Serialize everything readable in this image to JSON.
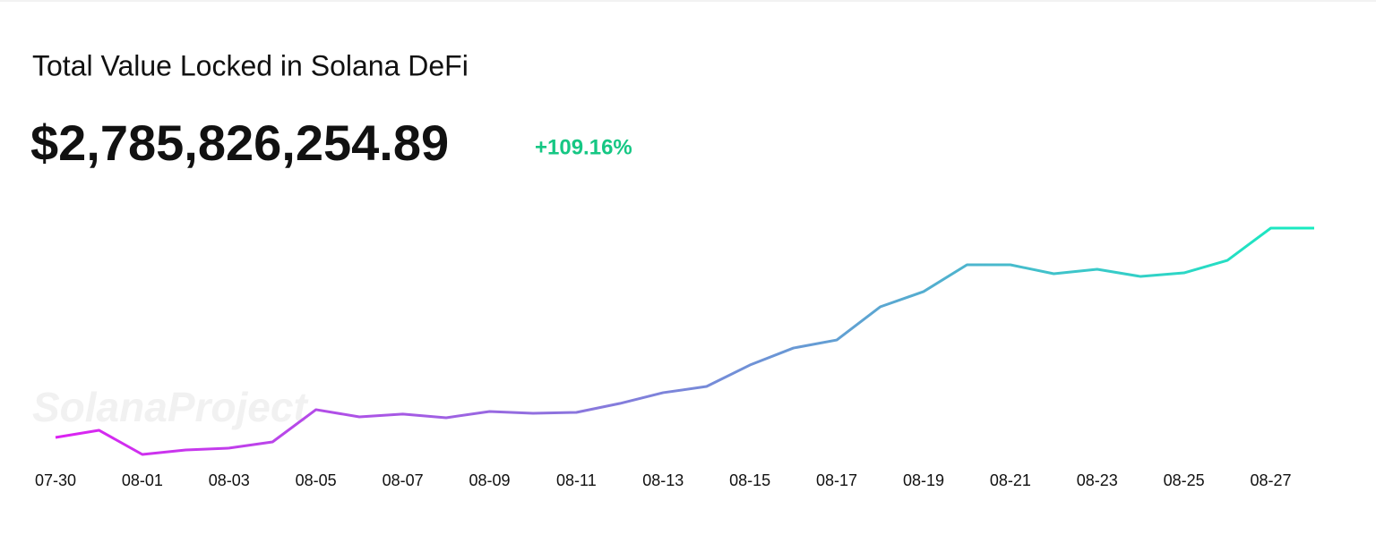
{
  "chart_data": {
    "type": "line",
    "title": "Total Value Locked in Solana DeFi",
    "headline_value": "$2,785,826,254.89",
    "change": "+109.16%",
    "watermark": "SolanaProject",
    "categories": [
      "07-30",
      null,
      "08-01",
      null,
      "08-03",
      null,
      "08-05",
      null,
      "08-07",
      null,
      "08-09",
      null,
      "08-11",
      null,
      "08-13",
      null,
      "08-15",
      null,
      "08-17",
      null,
      "08-19",
      null,
      "08-21",
      null,
      "08-23",
      null,
      "08-25",
      null,
      "08-27",
      null
    ],
    "values": [
      1332000000,
      1382000000,
      1214000000,
      1245000000,
      1258000000,
      1301000000,
      1525000000,
      1475000000,
      1494000000,
      1469000000,
      1512000000,
      1500000000,
      1506000000,
      1568000000,
      1643000000,
      1686000000,
      1835000000,
      1953000000,
      2009000000,
      2239000000,
      2345000000,
      2531000000,
      2531000000,
      2469000000,
      2500000000,
      2450000000,
      2475000000,
      2562000000,
      2785826254.89,
      2785826254.89
    ],
    "gradient": [
      "#dc22f2",
      "#17ecc0"
    ],
    "change_color": "#16c784"
  }
}
